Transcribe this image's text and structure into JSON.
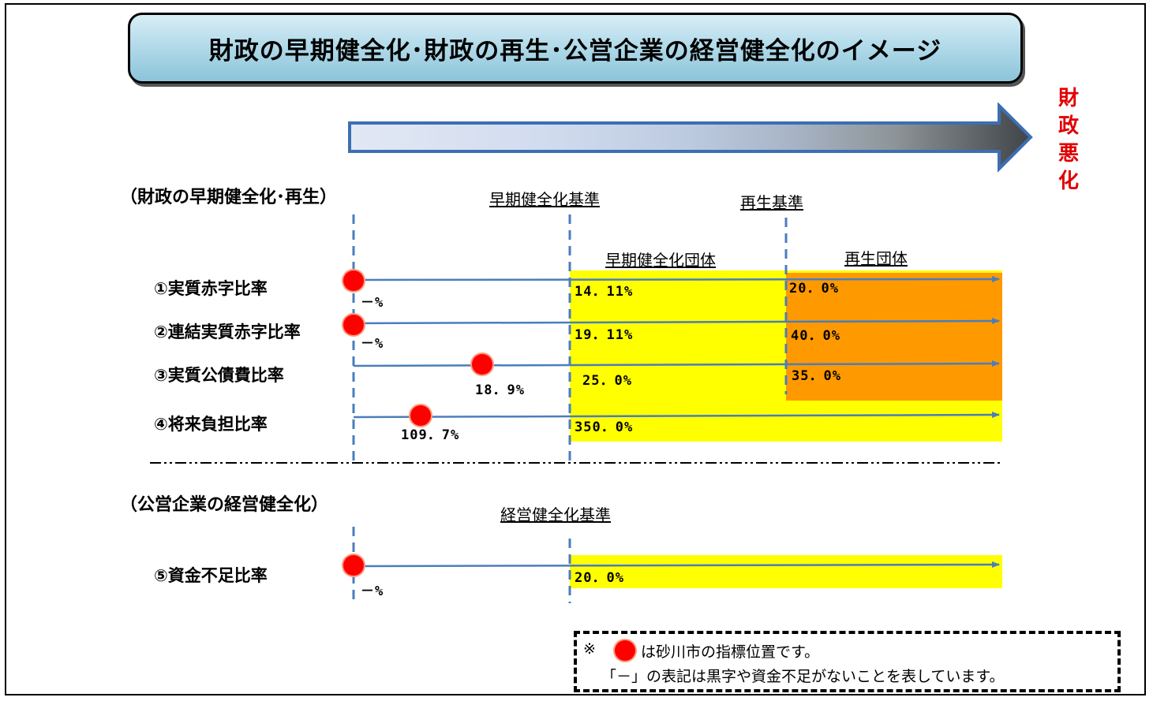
{
  "title": "財政の早期健全化･財政の再生･公営企業の経営健全化のイメージ",
  "arrow": {
    "label": "財政悪化"
  },
  "section_fiscal": "（財政の早期健全化･再生）",
  "section_enterprise": "（公営企業の経営健全化）",
  "criteria": {
    "early": "早期健全化基準",
    "rebuild": "再生基準",
    "management": "経営健全化基準"
  },
  "zones": {
    "early": "早期健全化団体",
    "rebuild": "再生団体"
  },
  "indicators": [
    {
      "label": "①実質赤字比率",
      "city_value": "－%",
      "early_threshold": "14．11%",
      "rebuild_threshold": "20．0%"
    },
    {
      "label": "②連結実質赤字比率",
      "city_value": "－%",
      "early_threshold": "19．11%",
      "rebuild_threshold": "40．0%"
    },
    {
      "label": "③実質公債費比率",
      "city_value": "18．9%",
      "early_threshold": "25．0%",
      "rebuild_threshold": "35．0%"
    },
    {
      "label": "④将来負担比率",
      "city_value": "109．7%",
      "early_threshold": "350．0%"
    },
    {
      "label": "⑤資金不足比率",
      "city_value": "－%",
      "management_threshold": "20．0%"
    }
  ],
  "note": {
    "mark": "※",
    "line1": "は砂川市の指標位置です。",
    "line2": "「－」の表記は黒字や資金不足がないことを表しています。"
  },
  "colors": {
    "early_zone": "#ffff00",
    "rebuild_zone": "#ff9900",
    "marker": "#ff0000",
    "line": "#4a7ebb",
    "arrow_label": "#e00000"
  }
}
